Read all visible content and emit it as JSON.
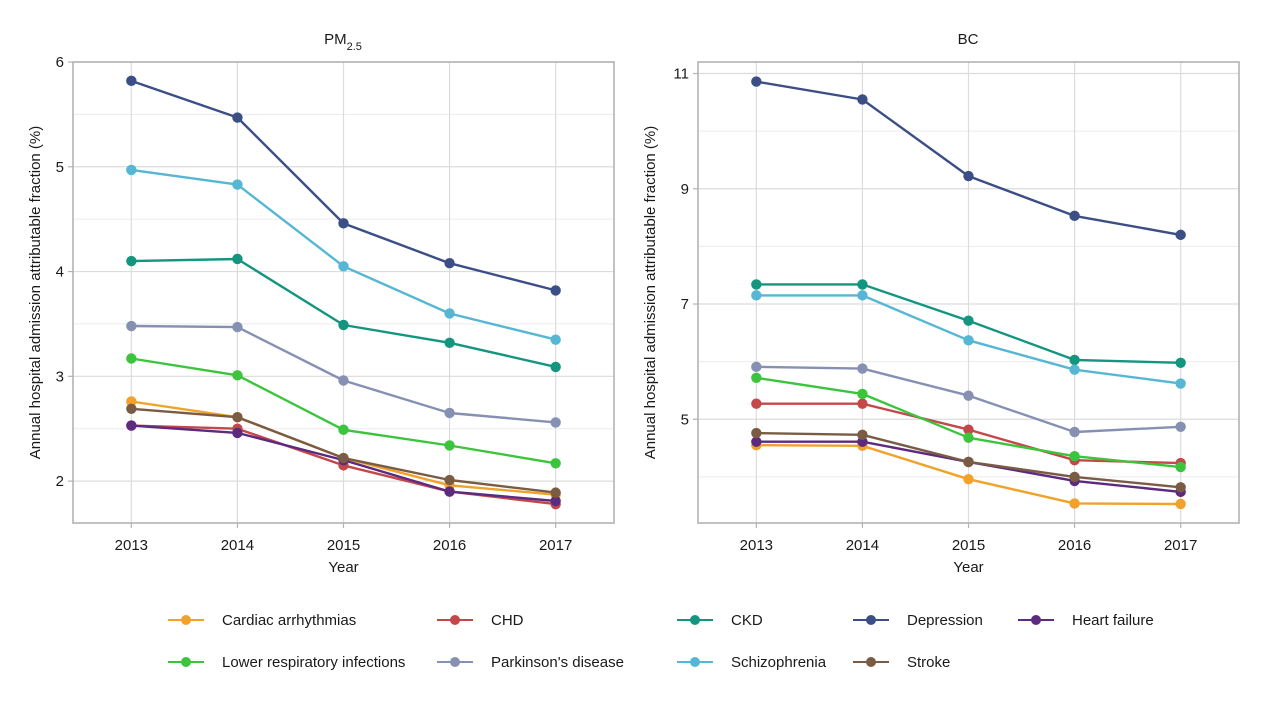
{
  "chart_data": [
    {
      "type": "line",
      "title": "PM2.5",
      "title_main": "PM",
      "title_sub": "2.5",
      "xlabel": "Year",
      "ylabel": "Annual hospital admission attributable fraction (%)",
      "x": [
        2013,
        2014,
        2015,
        2016,
        2017
      ],
      "xlim": [
        2012.45,
        2017.55
      ],
      "ylim": [
        1.6,
        6.0
      ],
      "yticks": [
        2,
        3,
        4,
        5,
        6
      ],
      "grid": true,
      "series": [
        {
          "name": "Cardiac arrhythmias",
          "values": [
            2.76,
            2.61,
            2.22,
            1.96,
            1.87
          ]
        },
        {
          "name": "CHD",
          "values": [
            2.53,
            2.5,
            2.15,
            1.9,
            1.78
          ]
        },
        {
          "name": "CKD",
          "values": [
            4.1,
            4.12,
            3.49,
            3.32,
            3.09
          ]
        },
        {
          "name": "Depression",
          "values": [
            5.82,
            5.47,
            4.46,
            4.08,
            3.82
          ]
        },
        {
          "name": "Heart failure",
          "values": [
            2.53,
            2.46,
            2.2,
            1.9,
            1.81
          ]
        },
        {
          "name": "Lower respiratory infections",
          "values": [
            3.17,
            3.01,
            2.49,
            2.34,
            2.17
          ]
        },
        {
          "name": "Parkinson's disease",
          "values": [
            3.48,
            3.47,
            2.96,
            2.65,
            2.56
          ]
        },
        {
          "name": "Schizophrenia",
          "values": [
            4.97,
            4.83,
            4.05,
            3.6,
            3.35
          ]
        },
        {
          "name": "Stroke",
          "values": [
            2.69,
            2.61,
            2.22,
            2.01,
            1.89
          ]
        }
      ]
    },
    {
      "type": "line",
      "title": "BC",
      "title_main": "BC",
      "title_sub": "",
      "xlabel": "Year",
      "ylabel": "Annual hospital admission attributable fraction (%)",
      "x": [
        2013,
        2014,
        2015,
        2016,
        2017
      ],
      "xlim": [
        2012.45,
        2017.55
      ],
      "ylim": [
        3.2,
        11.2
      ],
      "yticks": [
        5,
        7,
        9,
        11
      ],
      "grid": true,
      "series": [
        {
          "name": "Cardiac arrhythmias",
          "values": [
            4.55,
            4.54,
            3.96,
            3.54,
            3.53
          ]
        },
        {
          "name": "CHD",
          "values": [
            5.27,
            5.27,
            4.82,
            4.29,
            4.24
          ]
        },
        {
          "name": "CKD",
          "values": [
            7.34,
            7.34,
            6.71,
            6.03,
            5.98
          ]
        },
        {
          "name": "Depression",
          "values": [
            10.86,
            10.55,
            9.22,
            8.53,
            8.2
          ]
        },
        {
          "name": "Heart failure",
          "values": [
            4.61,
            4.61,
            4.26,
            3.93,
            3.74
          ]
        },
        {
          "name": "Lower respiratory infections",
          "values": [
            5.72,
            5.44,
            4.68,
            4.36,
            4.17
          ]
        },
        {
          "name": "Parkinson's disease",
          "values": [
            5.91,
            5.88,
            5.41,
            4.78,
            4.87
          ]
        },
        {
          "name": "Schizophrenia",
          "values": [
            7.15,
            7.15,
            6.37,
            5.86,
            5.62
          ]
        },
        {
          "name": "Stroke",
          "values": [
            4.76,
            4.73,
            4.26,
            4.0,
            3.82
          ]
        }
      ]
    }
  ],
  "legend": {
    "placement": "bottom",
    "items": [
      {
        "name": "Cardiac arrhythmias",
        "color": "#f0a22a"
      },
      {
        "name": "CHD",
        "color": "#c4474a"
      },
      {
        "name": "CKD",
        "color": "#14957f"
      },
      {
        "name": "Depression",
        "color": "#3b4f86"
      },
      {
        "name": "Heart failure",
        "color": "#5c2a7e"
      },
      {
        "name": "Lower respiratory infections",
        "color": "#3cc43c"
      },
      {
        "name": "Parkinson's disease",
        "color": "#8690b2"
      },
      {
        "name": "Schizophrenia",
        "color": "#55b7d3"
      },
      {
        "name": "Stroke",
        "color": "#7a5c45"
      }
    ]
  }
}
